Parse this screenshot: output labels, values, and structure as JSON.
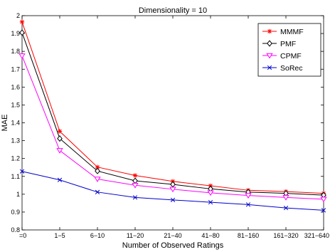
{
  "chart_data": {
    "type": "line",
    "title": "Dimensionality = 10",
    "xlabel": "Number of Observed Ratings",
    "ylabel": "MAE",
    "categories": [
      "=0",
      "1−5",
      "6−10",
      "11−20",
      "21−40",
      "41−80",
      "81−160",
      "161−320",
      "321−640"
    ],
    "ylim": [
      0.8,
      2.0
    ],
    "yticks": [
      "0.8",
      "0.9",
      "1",
      "1.1",
      "1.2",
      "1.3",
      "1.4",
      "1.5",
      "1.6",
      "1.7",
      "1.8",
      "1.9",
      "2"
    ],
    "grid": false,
    "legend_position": "top-right",
    "series": [
      {
        "name": "MMMF",
        "color": "#ff0000",
        "marker": "star",
        "values": [
          1.965,
          1.352,
          1.152,
          1.105,
          1.072,
          1.047,
          1.022,
          1.015,
          1.005
        ]
      },
      {
        "name": "PMF",
        "color": "#000000",
        "marker": "diamond",
        "values": [
          1.905,
          1.312,
          1.13,
          1.075,
          1.055,
          1.03,
          1.012,
          1.005,
          0.995
        ]
      },
      {
        "name": "CPMF",
        "color": "#ff00ff",
        "marker": "triangle",
        "values": [
          1.775,
          1.245,
          1.085,
          1.05,
          1.028,
          1.008,
          0.993,
          0.982,
          0.972
        ]
      },
      {
        "name": "SoRec",
        "color": "#0000cc",
        "marker": "x",
        "values": [
          1.128,
          1.08,
          1.012,
          0.982,
          0.968,
          0.955,
          0.942,
          0.923,
          0.91
        ]
      }
    ]
  }
}
